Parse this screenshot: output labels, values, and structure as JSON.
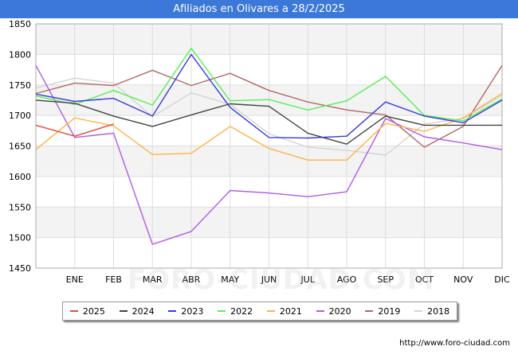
{
  "header": {
    "title": "Afiliados en Olivares a 28/2/2025"
  },
  "watermark": "FORO-CIUDAD.COM",
  "footer": {
    "url": "http://www.foro-ciudad.com"
  },
  "chart_data": {
    "type": "line",
    "title": "Afiliados en Olivares a 28/2/2025",
    "xlabel": "",
    "ylabel": "",
    "categories": [
      "",
      "ENE",
      "FEB",
      "MAR",
      "ABR",
      "MAY",
      "JUN",
      "JUL",
      "AGO",
      "SEP",
      "OCT",
      "NOV",
      "DIC"
    ],
    "ylim": [
      1450,
      1850
    ],
    "yticks": [
      1450,
      1500,
      1550,
      1600,
      1650,
      1700,
      1750,
      1800,
      1850
    ],
    "grid": true,
    "legend_position": "bottom",
    "series": [
      {
        "name": "2025",
        "color": "#e8473f",
        "values": [
          1684,
          1666,
          1686,
          null,
          null,
          null,
          null,
          null,
          null,
          null,
          null,
          null,
          null
        ]
      },
      {
        "name": "2024",
        "color": "#444444",
        "values": [
          1725,
          1720,
          1699,
          1682,
          1701,
          1719,
          1715,
          1671,
          1653,
          1699,
          1684,
          1684,
          1684
        ]
      },
      {
        "name": "2023",
        "color": "#3a3adc",
        "values": [
          1735,
          1723,
          1728,
          1699,
          1800,
          1713,
          1664,
          1663,
          1666,
          1722,
          1699,
          1688,
          1725
        ]
      },
      {
        "name": "2022",
        "color": "#55ee55",
        "values": [
          1732,
          1718,
          1741,
          1717,
          1810,
          1724,
          1726,
          1709,
          1724,
          1764,
          1700,
          1691,
          1727
        ]
      },
      {
        "name": "2021",
        "color": "#ffb347",
        "values": [
          1644,
          1696,
          1683,
          1636,
          1638,
          1682,
          1646,
          1627,
          1627,
          1687,
          1674,
          1696,
          1736
        ]
      },
      {
        "name": "2020",
        "color": "#b05be6",
        "values": [
          1782,
          1664,
          1671,
          1489,
          1510,
          1577,
          1573,
          1567,
          1575,
          1695,
          1665,
          1655,
          1644
        ]
      },
      {
        "name": "2019",
        "color": "#b06868",
        "values": [
          1736,
          1753,
          1749,
          1774,
          1749,
          1769,
          1741,
          1722,
          1709,
          1701,
          1648,
          1682,
          1782
        ]
      },
      {
        "name": "2018",
        "color": "#d4d4d4",
        "values": [
          1745,
          1761,
          1753,
          1698,
          1737,
          1718,
          1670,
          1648,
          1643,
          1635,
          1686,
          1695,
          1733
        ]
      }
    ]
  }
}
